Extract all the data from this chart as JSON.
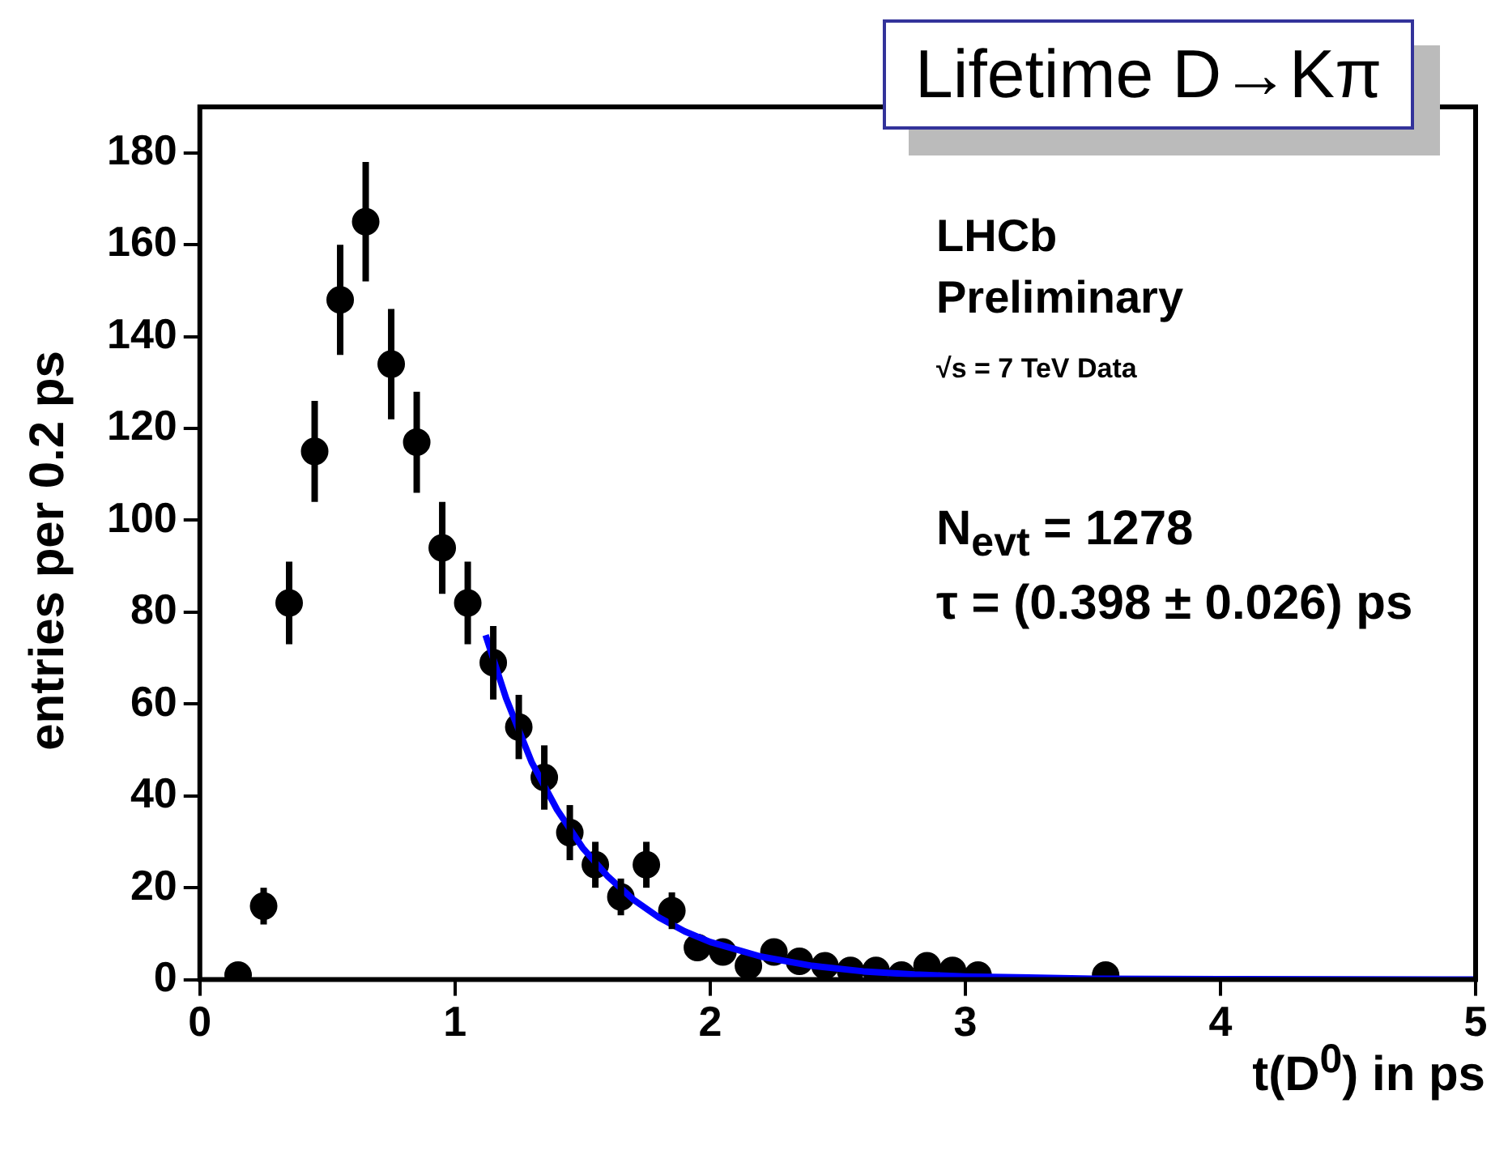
{
  "chart_data": {
    "type": "scatter",
    "title": "Lifetime D→Kπ",
    "xlabel": "t(D$^{0}$) in ps",
    "ylabel": "entries per 0.2 ps",
    "annotations": [
      "LHCb",
      "Preliminary",
      "√s = 7 TeV Data",
      "N$_{evt}$ = 1278",
      "τ = (0.398 ± 0.026) ps"
    ],
    "series": [
      {
        "color": "#000000",
        "marker": "circle",
        "x": [
          0.15,
          0.25,
          0.35,
          0.45,
          0.55,
          0.65,
          0.75,
          0.85,
          0.95,
          1.05,
          1.15,
          1.25,
          1.35,
          1.45,
          1.55,
          1.65,
          1.75,
          1.85,
          1.95,
          2.05,
          2.15,
          2.25,
          2.35,
          2.45,
          2.55,
          2.65,
          2.75,
          2.85,
          2.95,
          3.05,
          3.55
        ],
        "values": [
          1,
          16,
          82,
          115,
          148,
          165,
          134,
          117,
          94,
          82,
          69,
          55,
          44,
          32,
          25,
          18,
          25,
          15,
          7,
          6,
          3,
          6,
          4,
          3,
          2,
          2,
          1,
          3,
          2,
          1,
          1
        ],
        "errors": [
          null,
          4,
          9,
          11,
          12,
          13,
          12,
          11,
          10,
          9,
          8,
          7,
          7,
          6,
          5,
          4,
          5,
          4,
          null,
          null,
          null,
          null,
          null,
          null,
          null,
          null,
          null,
          null,
          null,
          null,
          null
        ]
      },
      {
        "type": "line",
        "color": "#0000ff",
        "x": [
          1.12,
          1.2,
          1.3,
          1.4,
          1.5,
          1.6,
          1.7,
          1.8,
          1.9,
          2.0,
          2.2,
          2.4,
          2.6,
          2.8,
          3.0,
          3.5,
          4.0,
          5.0
        ],
        "values": [
          75,
          61.3,
          47.4,
          37.0,
          28.7,
          22.4,
          17.4,
          13.5,
          10.5,
          8.2,
          5.0,
          3.0,
          1.8,
          1.1,
          0.7,
          0.2,
          0.1,
          0
        ]
      }
    ],
    "xlim": [
      0,
      5
    ],
    "xticks": [
      0,
      1,
      2,
      3,
      4,
      5
    ],
    "ylim": [
      0,
      190
    ],
    "yticks": [
      0,
      20,
      40,
      60,
      80,
      100,
      120,
      140,
      160,
      180
    ],
    "line_style": "solid",
    "grid": false,
    "legend": false
  }
}
